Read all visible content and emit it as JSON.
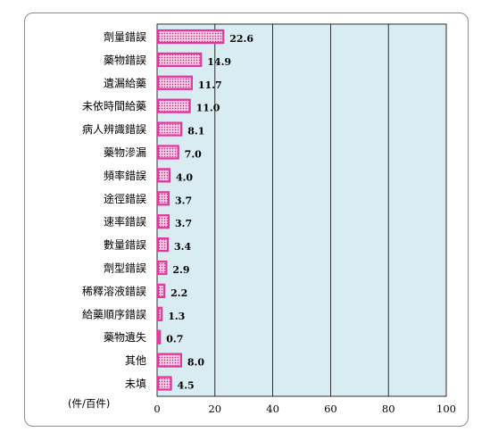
{
  "chart_data": {
    "type": "bar",
    "orientation": "horizontal",
    "unit_label": "(件/百件)",
    "categories": [
      "劑量錯誤",
      "藥物錯誤",
      "遺漏給藥",
      "未依時間給藥",
      "病人辨識錯誤",
      "藥物滲漏",
      "頻率錯誤",
      "途徑錯誤",
      "速率錯誤",
      "數量錯誤",
      "劑型錯誤",
      "稀釋溶液錯誤",
      "給藥順序錯誤",
      "藥物遺失",
      "其他",
      "未填"
    ],
    "values": [
      22.6,
      14.9,
      11.7,
      11.0,
      8.1,
      7.0,
      4.0,
      3.7,
      3.7,
      3.4,
      2.9,
      2.2,
      1.3,
      0.7,
      8.0,
      4.5
    ],
    "value_labels": [
      "22.6",
      "14.9",
      "11.7",
      "11.0",
      "8.1",
      "7.0",
      "4.0",
      "3.7",
      "3.7",
      "3.4",
      "2.9",
      "2.2",
      "1.3",
      "0.7",
      "8.0",
      "4.5"
    ],
    "xlim": [
      0,
      100
    ],
    "xticks": [
      0,
      20,
      40,
      60,
      80,
      100
    ],
    "grid": true,
    "colors": {
      "plot_background": "#d9ecf1",
      "bar_fill": "#f7c9e6",
      "bar_border": "#e8359e",
      "bar_dots": "#b5306e",
      "gridline": "#000000"
    }
  }
}
